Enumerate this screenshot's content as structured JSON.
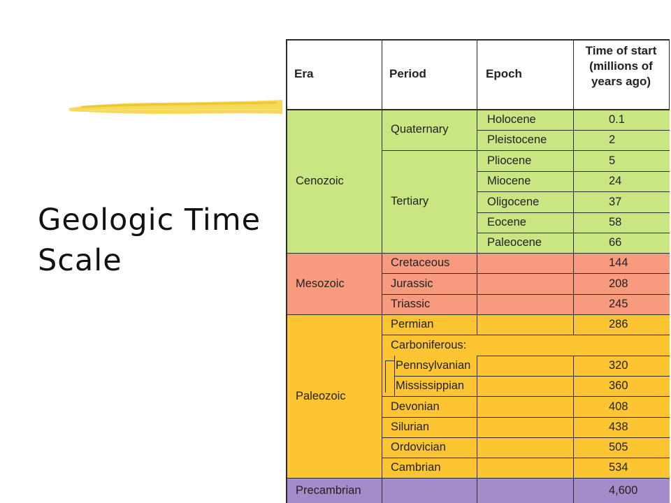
{
  "slide": {
    "title_line1": "Geologic Time",
    "title_line2": "Scale"
  },
  "colors": {
    "header": "#ffffff",
    "cenozoic": "#c9e682",
    "mesozoic": "#f89a7e",
    "paleozoic": "#fdc532",
    "precambrian": "#a48bc9",
    "brush": "#f4d23a"
  },
  "table": {
    "headers": {
      "era": "Era",
      "period": "Period",
      "epoch": "Epoch",
      "time_line1": "Time of start",
      "time_line2": "(millions of",
      "time_line3": "years ago)"
    },
    "eras": {
      "cenozoic": "Cenozoic",
      "mesozoic": "Mesozoic",
      "paleozoic": "Paleozoic",
      "precambrian": "Precambrian"
    },
    "periods": {
      "quaternary": "Quaternary",
      "tertiary": "Tertiary",
      "cretaceous": "Cretaceous",
      "jurassic": "Jurassic",
      "triassic": "Triassic",
      "permian": "Permian",
      "carboniferous": "Carboniferous:",
      "pennsylvanian": "Pennsylvanian",
      "mississippian": "Mississippian",
      "devonian": "Devonian",
      "silurian": "Silurian",
      "ordovician": "Ordovician",
      "cambrian": "Cambrian"
    },
    "epochs": {
      "holocene": "Holocene",
      "pleistocene": "Pleistocene",
      "pliocene": "Pliocene",
      "miocene": "Miocene",
      "oligocene": "Oligocene",
      "eocene": "Eocene",
      "paleocene": "Paleocene"
    },
    "times": {
      "holocene": "0.1",
      "pleistocene": "2",
      "pliocene": "5",
      "miocene": "24",
      "oligocene": "37",
      "eocene": "58",
      "paleocene": "66",
      "cretaceous": "144",
      "jurassic": "208",
      "triassic": "245",
      "permian": "286",
      "pennsylvanian": "320",
      "mississippian": "360",
      "devonian": "408",
      "silurian": "438",
      "ordovician": "505",
      "cambrian": "534",
      "precambrian": "4,600"
    }
  }
}
